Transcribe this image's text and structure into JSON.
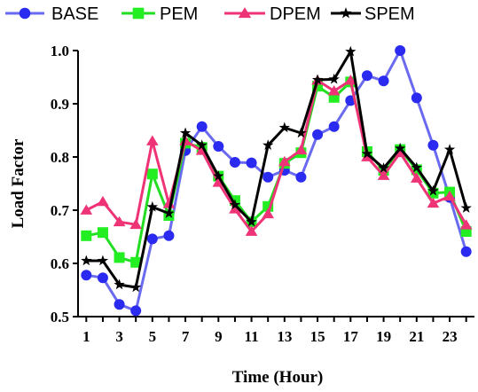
{
  "chart_data": {
    "type": "line",
    "xlabel": "Time (Hour)",
    "ylabel": "Load Factor",
    "xlim": [
      0.5,
      24.5
    ],
    "ylim": [
      0.5,
      1.0
    ],
    "x": [
      1,
      2,
      3,
      4,
      5,
      6,
      7,
      8,
      9,
      10,
      11,
      12,
      13,
      14,
      15,
      16,
      17,
      18,
      19,
      20,
      21,
      22,
      23,
      24
    ],
    "x_ticks": [
      1,
      3,
      5,
      7,
      9,
      11,
      13,
      15,
      17,
      19,
      21,
      23
    ],
    "x_tick_labels": [
      "1",
      "3",
      "5",
      "7",
      "9",
      "11",
      "13",
      "15",
      "17",
      "19",
      "21",
      "23"
    ],
    "y_ticks": [
      0.5,
      0.6,
      0.7,
      0.8,
      0.9,
      1.0
    ],
    "y_tick_labels": [
      "0.5",
      "0.6",
      "0.7",
      "0.8",
      "0.9",
      "1.0"
    ],
    "legend_position": "top",
    "series": [
      {
        "name": "BASE",
        "color": "#6a6af0",
        "marker_color": "#2a2af0",
        "marker": "circle",
        "values": [
          0.578,
          0.573,
          0.523,
          0.511,
          0.646,
          0.652,
          0.812,
          0.857,
          0.82,
          0.79,
          0.789,
          0.762,
          0.775,
          0.762,
          0.842,
          0.857,
          0.906,
          0.953,
          0.943,
          1.0,
          0.911,
          0.822,
          0.724,
          0.622
        ]
      },
      {
        "name": "PEM",
        "color": "#22dd22",
        "marker_color": "#22ee22",
        "marker": "square",
        "values": [
          0.652,
          0.658,
          0.611,
          0.602,
          0.768,
          0.69,
          0.826,
          0.818,
          0.764,
          0.718,
          0.678,
          0.707,
          0.788,
          0.808,
          0.933,
          0.912,
          0.941,
          0.81,
          0.775,
          0.814,
          0.776,
          0.732,
          0.734,
          0.66
        ]
      },
      {
        "name": "DPEM",
        "color": "#ee3377",
        "marker_color": "#ee3377",
        "marker": "triangle",
        "values": [
          0.7,
          0.716,
          0.678,
          0.673,
          0.83,
          0.712,
          0.83,
          0.812,
          0.752,
          0.702,
          0.66,
          0.693,
          0.791,
          0.813,
          0.944,
          0.924,
          0.944,
          0.8,
          0.765,
          0.808,
          0.76,
          0.713,
          0.726,
          0.672
        ]
      },
      {
        "name": "SPEM",
        "color": "#000000",
        "marker_color": "#000000",
        "marker": "star",
        "values": [
          0.605,
          0.605,
          0.56,
          0.555,
          0.706,
          0.694,
          0.845,
          0.822,
          0.764,
          0.71,
          0.678,
          0.822,
          0.855,
          0.845,
          0.945,
          0.946,
          0.998,
          0.806,
          0.779,
          0.816,
          0.78,
          0.736,
          0.814,
          0.704
        ]
      }
    ]
  }
}
